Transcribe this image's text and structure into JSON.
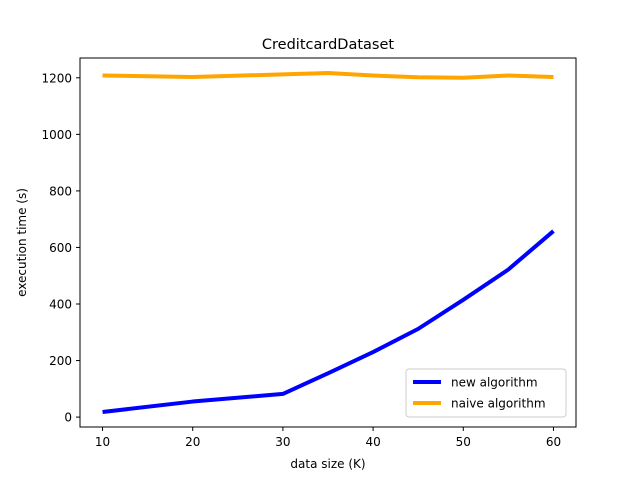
{
  "chart_data": {
    "type": "line",
    "title": "CreditcardDataset",
    "xlabel": "data size (K)",
    "ylabel": "execution time (s)",
    "xlim": [
      7.5,
      62.5
    ],
    "ylim": [
      -35,
      1270
    ],
    "xticks": [
      10,
      20,
      30,
      40,
      50,
      60
    ],
    "yticks": [
      0,
      200,
      400,
      600,
      800,
      1000,
      1200
    ],
    "grid": false,
    "legend_position": "lower right",
    "series": [
      {
        "name": "new algorithm",
        "color": "#0000ff",
        "x": [
          10,
          20,
          30,
          35,
          40,
          45,
          50,
          55,
          60
        ],
        "y": [
          18,
          55,
          82,
          155,
          230,
          312,
          415,
          522,
          658
        ]
      },
      {
        "name": "naive algorithm",
        "color": "#ffa500",
        "x": [
          10,
          20,
          30,
          35,
          40,
          45,
          50,
          55,
          60
        ],
        "y": [
          1208,
          1203,
          1212,
          1217,
          1208,
          1202,
          1200,
          1208,
          1203
        ]
      }
    ]
  }
}
